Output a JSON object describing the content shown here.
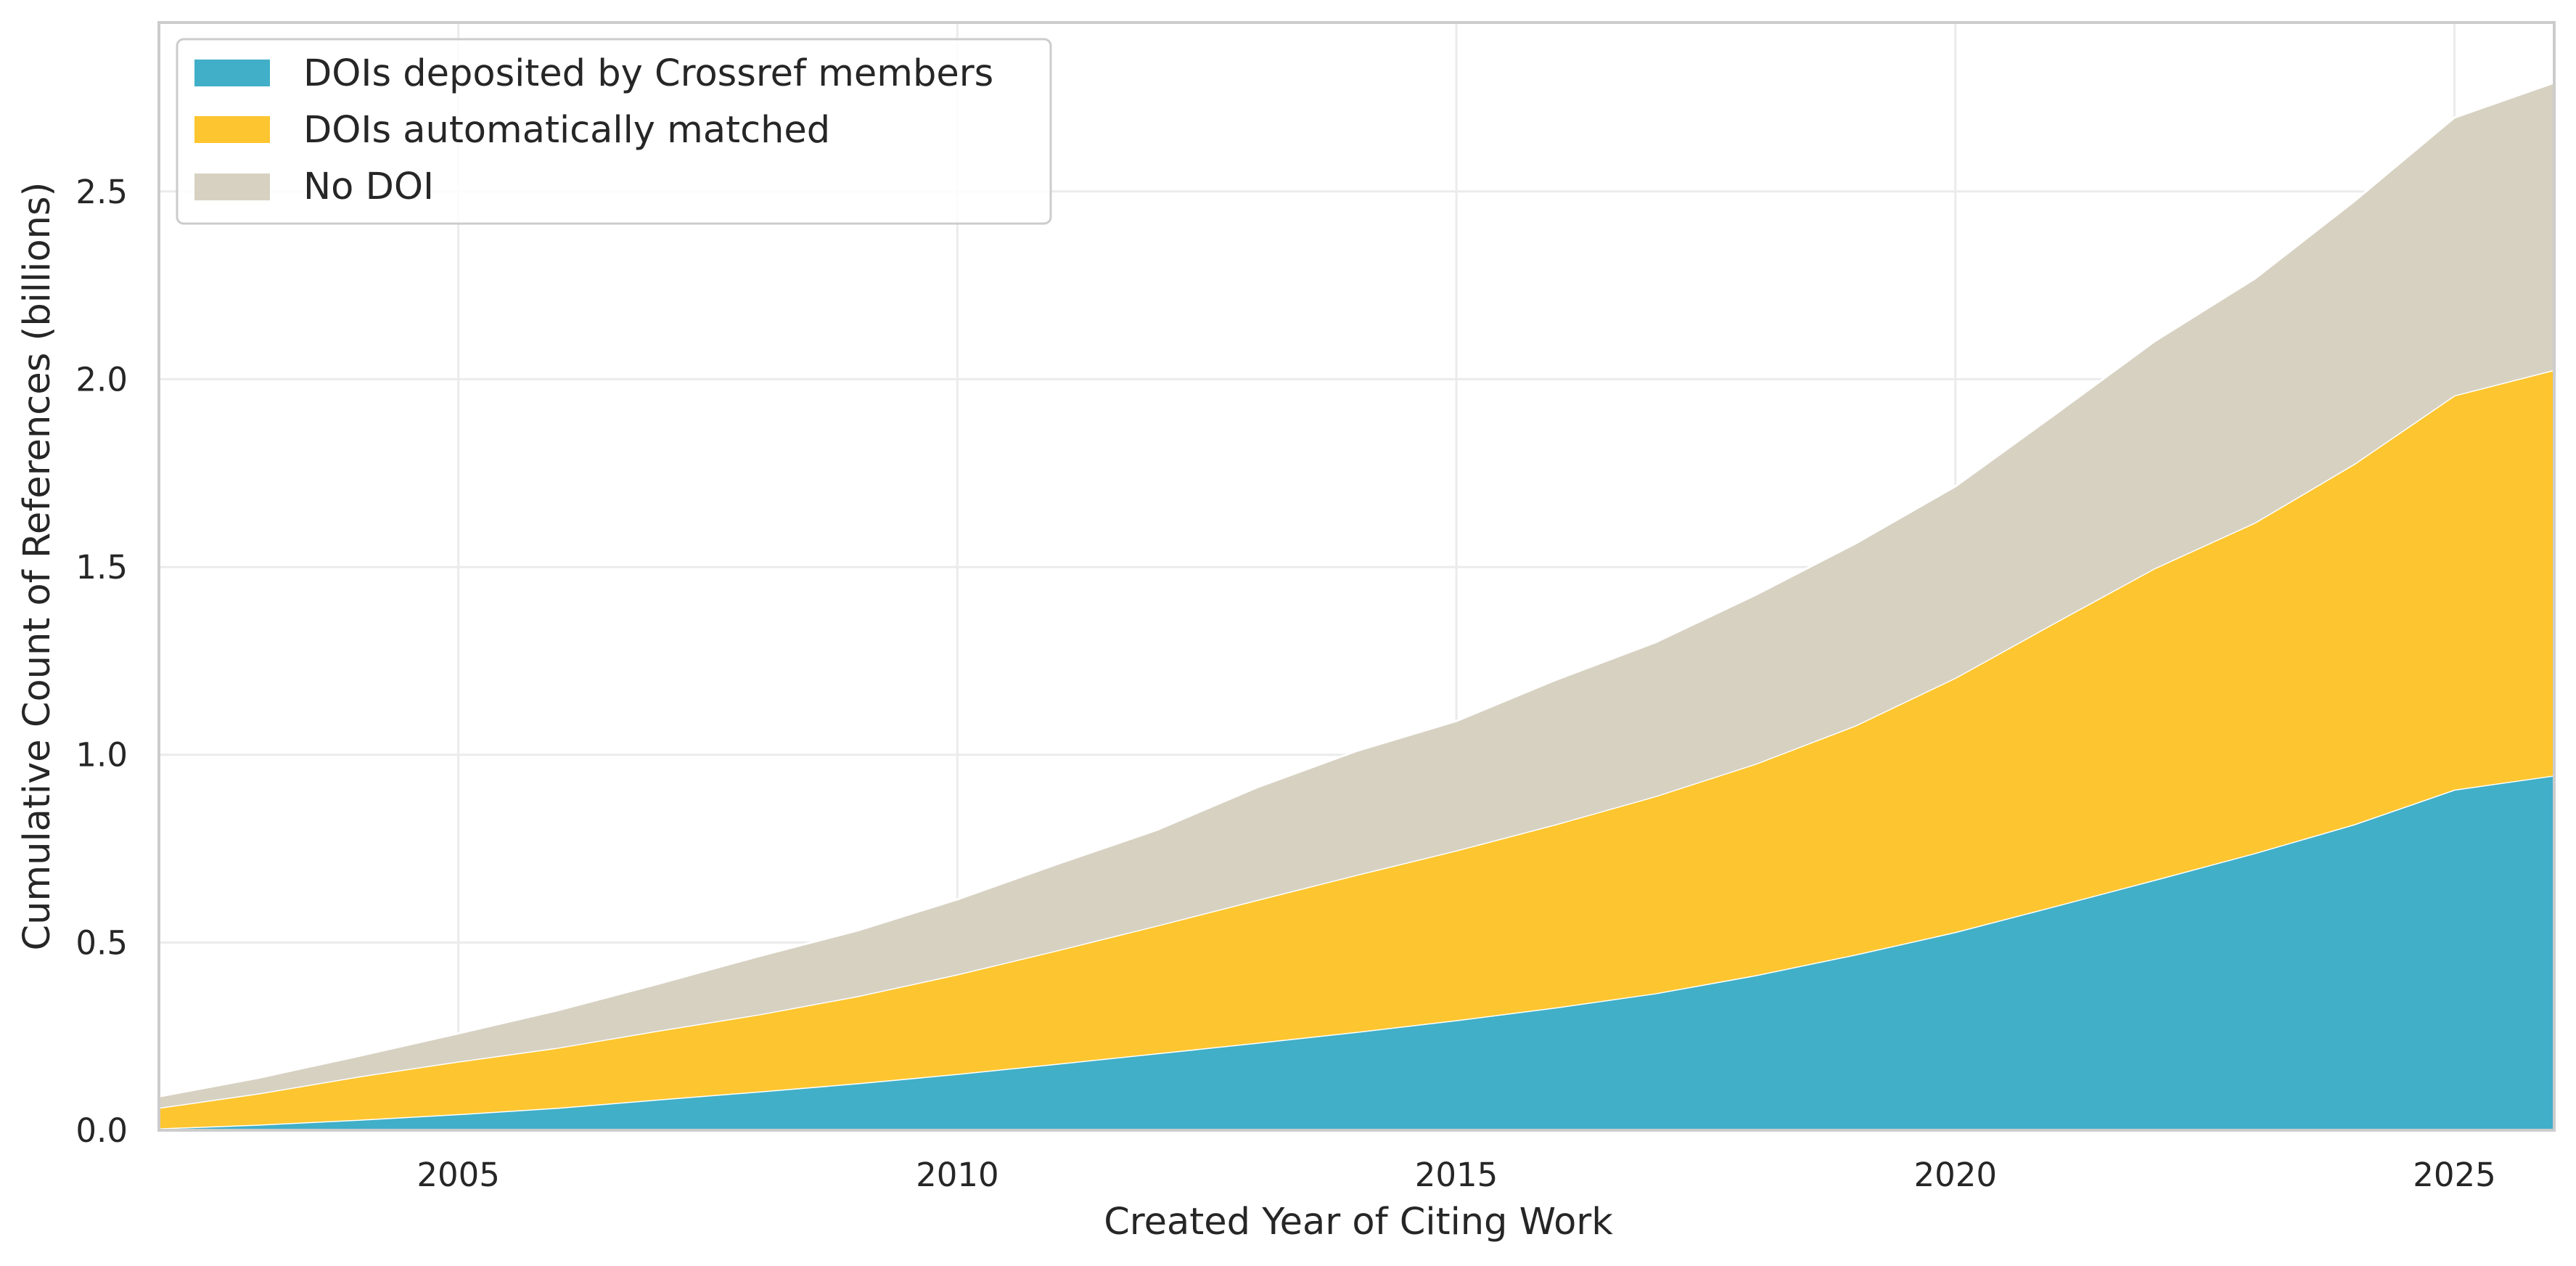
{
  "chart_data": {
    "type": "area",
    "stacked": true,
    "title": "",
    "xlabel": "Created Year of Citing Work",
    "ylabel": "Cumulative Count of References (billions)",
    "xlim": [
      2002,
      2026
    ],
    "ylim": [
      0,
      2.95
    ],
    "x_ticks": [
      2005,
      2010,
      2015,
      2020,
      2025
    ],
    "y_ticks": [
      0.0,
      0.5,
      1.0,
      1.5,
      2.0,
      2.5
    ],
    "x_tick_labels": [
      "2005",
      "2010",
      "2015",
      "2020",
      "2025"
    ],
    "y_tick_labels": [
      "0.0",
      "0.5",
      "1.0",
      "1.5",
      "2.0",
      "2.5"
    ],
    "grid": true,
    "legend_position": "top-left",
    "x": [
      2002,
      2003,
      2004,
      2005,
      2006,
      2007,
      2008,
      2009,
      2010,
      2011,
      2012,
      2013,
      2014,
      2015,
      2016,
      2017,
      2018,
      2019,
      2020,
      2021,
      2022,
      2023,
      2024,
      2025,
      2026
    ],
    "series": [
      {
        "name": "DOIs deposited by Crossref members",
        "color": "#41afc8",
        "values": [
          0.005,
          0.015,
          0.028,
          0.043,
          0.06,
          0.082,
          0.103,
          0.125,
          0.15,
          0.177,
          0.205,
          0.233,
          0.262,
          0.293,
          0.327,
          0.365,
          0.413,
          0.468,
          0.528,
          0.597,
          0.667,
          0.738,
          0.815,
          0.907,
          0.945
        ]
      },
      {
        "name": "DOIs automatically matched",
        "color": "#fdc52f",
        "values": [
          0.055,
          0.083,
          0.115,
          0.14,
          0.16,
          0.183,
          0.205,
          0.232,
          0.265,
          0.302,
          0.34,
          0.38,
          0.418,
          0.452,
          0.488,
          0.525,
          0.563,
          0.61,
          0.677,
          0.755,
          0.83,
          0.88,
          0.96,
          1.05,
          1.08
        ]
      },
      {
        "name": "No DOI",
        "color": "#d7d1c2",
        "values": [
          0.03,
          0.042,
          0.055,
          0.075,
          0.1,
          0.125,
          0.155,
          0.175,
          0.2,
          0.23,
          0.255,
          0.3,
          0.33,
          0.345,
          0.385,
          0.41,
          0.45,
          0.485,
          0.51,
          0.555,
          0.605,
          0.65,
          0.7,
          0.74,
          0.765
        ]
      }
    ]
  }
}
